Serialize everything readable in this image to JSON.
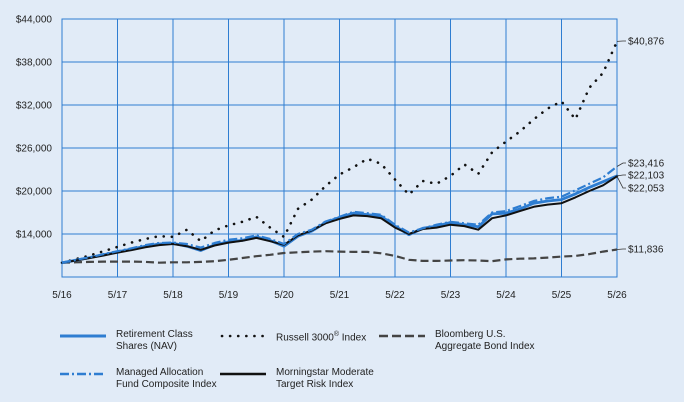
{
  "chart_data": {
    "type": "line",
    "x_ticks": [
      "5/16",
      "5/17",
      "5/18",
      "5/19",
      "5/20",
      "5/21",
      "5/22",
      "5/23",
      "5/24",
      "5/25",
      "5/26"
    ],
    "y_ticks": [
      "$44,000",
      "$38,000",
      "$32,000",
      "$26,000",
      "$20,000",
      "$14,000"
    ],
    "ylim": [
      8000,
      44000
    ],
    "grid": true,
    "end_labels": {
      "russell": "$40,876",
      "managed": "$23,416",
      "retirement": "$22,103",
      "morningstar": "$22,053",
      "bloomberg": "$11,836"
    },
    "series": [
      {
        "key": "retirement",
        "name": "Retirement Class Shares (NAV)",
        "color": "#2e7dd1",
        "x": [
          0,
          0.25,
          0.5,
          0.75,
          1,
          1.25,
          1.5,
          1.75,
          2,
          2.25,
          2.5,
          2.75,
          3,
          3.25,
          3.5,
          3.75,
          4,
          4.25,
          4.5,
          4.75,
          5,
          5.25,
          5.5,
          5.75,
          6,
          6.25,
          6.5,
          6.75,
          7,
          7.25,
          7.5,
          7.75,
          8,
          8.25,
          8.5,
          8.75,
          9,
          9.25,
          9.5,
          9.75,
          10
        ],
        "y": [
          10000,
          10350,
          10700,
          11100,
          11500,
          11900,
          12300,
          12600,
          12700,
          12300,
          11700,
          12500,
          12900,
          13100,
          13600,
          13100,
          12300,
          13700,
          14400,
          15600,
          16300,
          16900,
          16700,
          16500,
          15100,
          13900,
          14800,
          15100,
          15600,
          15300,
          15000,
          16800,
          16900,
          17500,
          18300,
          18600,
          18800,
          19600,
          20500,
          21300,
          22103
        ]
      },
      {
        "key": "russell",
        "name": "Russell 3000® Index",
        "color": "#111111",
        "x": [
          0,
          0.25,
          0.5,
          0.75,
          1,
          1.25,
          1.5,
          1.75,
          2,
          2.25,
          2.5,
          2.75,
          3,
          3.25,
          3.5,
          3.75,
          4,
          4.25,
          4.5,
          4.75,
          5,
          5.25,
          5.5,
          5.75,
          6,
          6.25,
          6.5,
          6.75,
          7,
          7.25,
          7.5,
          7.75,
          8,
          8.25,
          8.5,
          8.75,
          9,
          9.25,
          9.5,
          9.75,
          10
        ],
        "y": [
          10000,
          10500,
          11000,
          11600,
          12200,
          12800,
          13300,
          13700,
          13600,
          14600,
          13000,
          14500,
          15200,
          15700,
          16400,
          14900,
          13600,
          17500,
          18800,
          20700,
          22300,
          23300,
          24500,
          23800,
          21600,
          19500,
          21400,
          21000,
          22100,
          23700,
          22400,
          25400,
          26900,
          28300,
          30000,
          31500,
          32500,
          30000,
          34400,
          36500,
          40876
        ]
      },
      {
        "key": "bloomberg",
        "name": "Bloomberg U.S. Aggregate Bond Index",
        "color": "#444444",
        "x": [
          0,
          0.25,
          0.5,
          0.75,
          1,
          1.25,
          1.5,
          1.75,
          2,
          2.25,
          2.5,
          2.75,
          3,
          3.25,
          3.5,
          3.75,
          4,
          4.25,
          4.5,
          4.75,
          5,
          5.25,
          5.5,
          5.75,
          6,
          6.25,
          6.5,
          6.75,
          7,
          7.25,
          7.5,
          7.75,
          8,
          8.25,
          8.5,
          8.75,
          9,
          9.25,
          9.5,
          9.75,
          10
        ],
        "y": [
          10000,
          10050,
          10100,
          10150,
          10150,
          10150,
          10100,
          10000,
          10050,
          10050,
          10100,
          10200,
          10400,
          10650,
          10900,
          11100,
          11350,
          11450,
          11550,
          11600,
          11550,
          11500,
          11500,
          11300,
          10950,
          10400,
          10250,
          10250,
          10300,
          10350,
          10300,
          10200,
          10450,
          10550,
          10600,
          10700,
          10850,
          10950,
          11200,
          11550,
          11836
        ]
      },
      {
        "key": "managed",
        "name": "Managed Allocation Fund Composite Index",
        "color": "#2e7dd1",
        "x": [
          0,
          0.25,
          0.5,
          0.75,
          1,
          1.25,
          1.5,
          1.75,
          2,
          2.25,
          2.5,
          2.75,
          3,
          3.25,
          3.5,
          3.75,
          4,
          4.25,
          4.5,
          4.75,
          5,
          5.25,
          5.5,
          5.75,
          6,
          6.25,
          6.5,
          6.75,
          7,
          7.25,
          7.5,
          7.75,
          8,
          8.25,
          8.5,
          8.75,
          9,
          9.25,
          9.5,
          9.75,
          10
        ],
        "y": [
          10000,
          10400,
          10750,
          11200,
          11600,
          12000,
          12450,
          12750,
          12800,
          12600,
          12100,
          12750,
          13200,
          13400,
          13800,
          13300,
          12600,
          14000,
          14600,
          15750,
          16400,
          17100,
          16900,
          16700,
          15300,
          14200,
          14800,
          15300,
          15700,
          15500,
          15300,
          17000,
          17200,
          17900,
          18600,
          19000,
          19200,
          20100,
          21000,
          21900,
          23416
        ]
      },
      {
        "key": "morningstar",
        "name": "Morningstar Moderate Target Risk Index",
        "color": "#111111",
        "x": [
          0,
          0.25,
          0.5,
          0.75,
          1,
          1.25,
          1.5,
          1.75,
          2,
          2.25,
          2.5,
          2.75,
          3,
          3.25,
          3.5,
          3.75,
          4,
          4.25,
          4.5,
          4.75,
          5,
          5.25,
          5.5,
          5.75,
          6,
          6.25,
          6.5,
          6.75,
          7,
          7.25,
          7.5,
          7.75,
          8,
          8.25,
          8.5,
          8.75,
          9,
          9.25,
          9.5,
          9.75,
          10
        ],
        "y": [
          10000,
          10300,
          10650,
          11000,
          11400,
          11750,
          12150,
          12450,
          12600,
          12300,
          11800,
          12400,
          12800,
          13050,
          13450,
          13000,
          12500,
          13800,
          14500,
          15500,
          16100,
          16600,
          16500,
          16200,
          14900,
          14000,
          14700,
          14900,
          15300,
          15100,
          14600,
          16200,
          16600,
          17200,
          17800,
          18100,
          18300,
          19100,
          20000,
          20800,
          22053
        ]
      }
    ]
  },
  "legend": [
    {
      "key": "retirement",
      "label": "Retirement Class\nShares (NAV)"
    },
    {
      "key": "russell",
      "label_main": "Russell 3000",
      "label_sup": "®",
      "label_tail": " Index"
    },
    {
      "key": "bloomberg",
      "label": "Bloomberg U.S.\nAggregate Bond Index"
    },
    {
      "key": "managed",
      "label": "Managed Allocation\nFund Composite Index"
    },
    {
      "key": "morningstar",
      "label": "Morningstar Moderate\nTarget Risk Index"
    }
  ]
}
